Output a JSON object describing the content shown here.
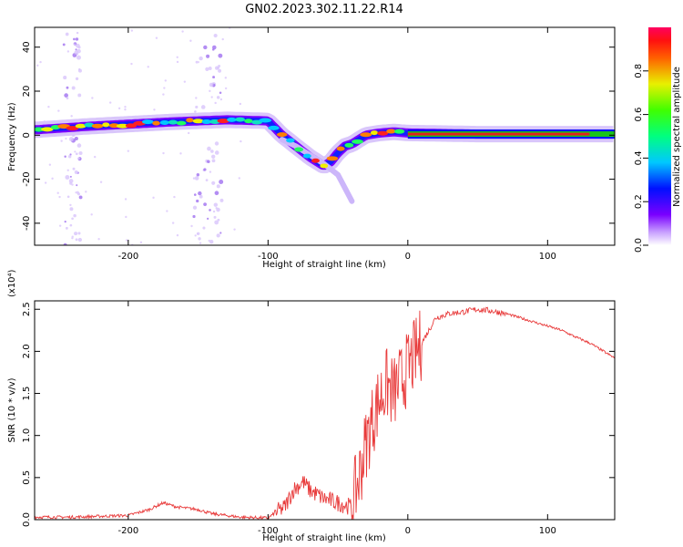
{
  "title": "GN02.2023.302.11.22.R14",
  "colors": {
    "snr_line": "#e83a3a",
    "track": "#19c419",
    "track_core": "#e02020"
  },
  "chart_data": [
    {
      "type": "heatmap",
      "xlabel": "Height of straight line (km)",
      "ylabel": "Frequency (Hz)",
      "xlim": [
        -267,
        148
      ],
      "ylim": [
        -50,
        49
      ],
      "x_ticks": [
        "-200",
        "-100",
        "0",
        "100"
      ],
      "y_ticks": [
        "40",
        "20",
        "0",
        "-20",
        "-40"
      ],
      "colorbar": {
        "label": "Normalized spectral amplitude",
        "range": [
          0,
          1
        ],
        "ticks": [
          "0.0",
          "0.2",
          "0.4",
          "0.6",
          "0.8"
        ],
        "colormap": "rainbow"
      },
      "ridge": {
        "x": [
          -265,
          -230,
          -200,
          -170,
          -150,
          -130,
          -100,
          -90,
          -80,
          -70,
          -60,
          -55,
          -50,
          -45,
          -40,
          -35,
          -30,
          -25,
          -20,
          -10,
          0,
          50,
          100,
          148
        ],
        "freq_hz": [
          2.5,
          4,
          5,
          6,
          6.5,
          7,
          6.5,
          0,
          -5,
          -10,
          -14,
          -12,
          -8,
          -5,
          -4,
          -2,
          0,
          0.5,
          1,
          1.5,
          1,
          0.5,
          0.5,
          0.5
        ]
      },
      "side_branch": {
        "x": [
          -90,
          -80,
          -70,
          -60,
          -50,
          -40
        ],
        "freq_hz": [
          -2,
          -5,
          -9,
          -13,
          -18,
          -30
        ]
      }
    },
    {
      "type": "line",
      "xlabel": "Height of straight line (km)",
      "ylabel": "SNR (10 * v/v)",
      "y_multiplier": "(x10⁴)",
      "xlim": [
        -267,
        148
      ],
      "ylim": [
        0,
        2.6
      ],
      "x_ticks": [
        "-200",
        "-100",
        "0",
        "100"
      ],
      "y_ticks": [
        "0.0",
        "0.5",
        "1.0",
        "1.5",
        "2.0",
        "2.5"
      ],
      "series": [
        {
          "x": [
            -267,
            -240,
            -220,
            -200,
            -185,
            -175,
            -165,
            -150,
            -140,
            -120,
            -100,
            -95,
            -88,
            -82,
            -75,
            -70,
            -60,
            -50,
            -40,
            -35,
            -30,
            -25,
            -20,
            -15,
            -10,
            -5,
            0,
            10,
            20,
            30,
            40,
            50,
            60,
            70,
            80,
            90,
            100,
            110,
            120,
            130,
            140,
            148
          ],
          "y": [
            0.03,
            0.03,
            0.04,
            0.05,
            0.12,
            0.2,
            0.15,
            0.12,
            0.07,
            0.03,
            0.02,
            0.08,
            0.15,
            0.35,
            0.45,
            0.35,
            0.25,
            0.2,
            0.15,
            0.5,
            0.9,
            1.2,
            1.45,
            1.6,
            1.5,
            1.65,
            1.8,
            2.1,
            2.4,
            2.45,
            2.47,
            2.5,
            2.48,
            2.45,
            2.4,
            2.35,
            2.3,
            2.25,
            2.17,
            2.1,
            2.0,
            1.92
          ]
        }
      ]
    }
  ]
}
